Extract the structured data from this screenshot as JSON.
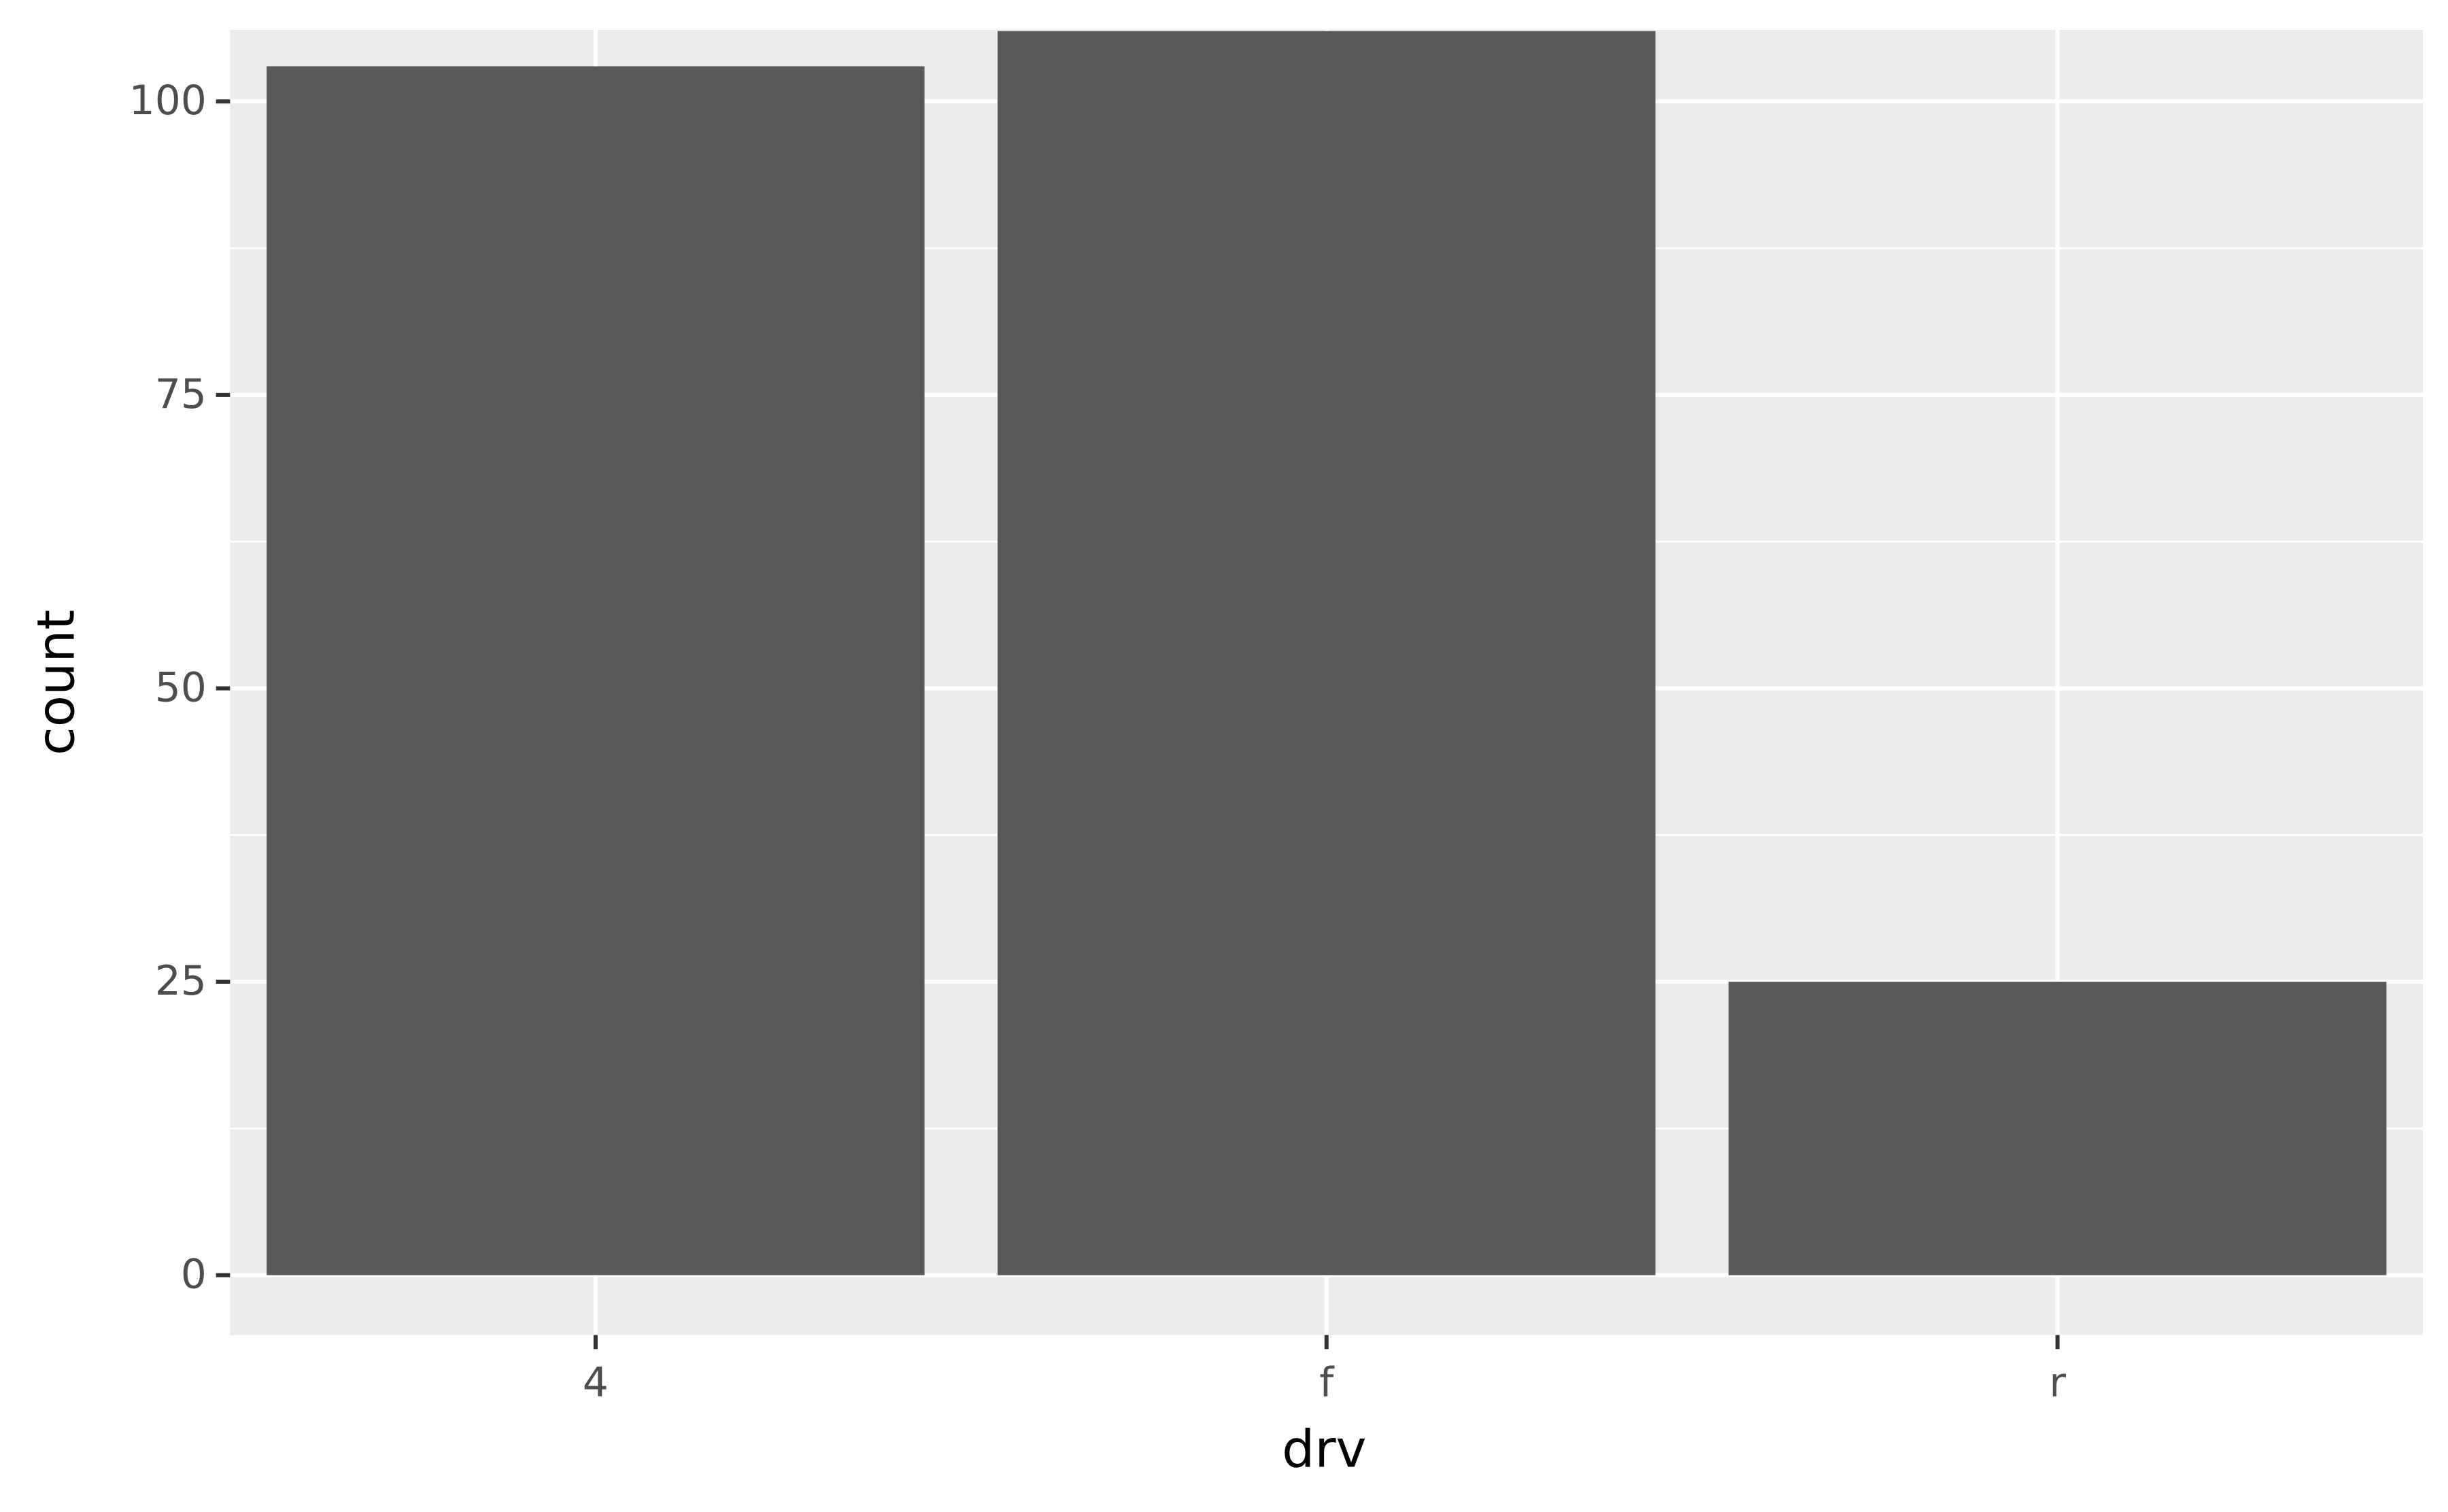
{
  "chart_data": {
    "type": "bar",
    "x_label": "drv",
    "y_label": "count",
    "categories": [
      "4",
      "f",
      "r"
    ],
    "values": [
      103,
      106,
      25
    ],
    "color": "#595959",
    "ylim": [
      -5.1,
      106.1
    ],
    "yticks": [
      0,
      25,
      50,
      75,
      100
    ],
    "minor_yticks": [
      12.5,
      37.5,
      62.5,
      87.5
    ],
    "grid": true,
    "panel_color": "#ebebeb"
  }
}
